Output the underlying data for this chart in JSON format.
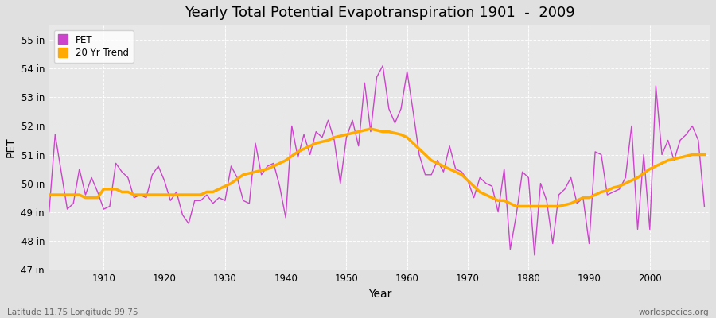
{
  "title": "Yearly Total Potential Evapotranspiration 1901  -  2009",
  "xlabel": "Year",
  "ylabel": "PET",
  "subtitle_left": "Latitude 11.75 Longitude 99.75",
  "subtitle_right": "worldspecies.org",
  "ylim": [
    47,
    55.5
  ],
  "yticks": [
    47,
    48,
    49,
    50,
    51,
    52,
    53,
    54,
    55
  ],
  "ytick_labels": [
    "47 in",
    "48 in",
    "49 in",
    "50 in",
    "51 in",
    "52 in",
    "53 in",
    "54 in",
    "55 in"
  ],
  "xticks": [
    1910,
    1920,
    1930,
    1940,
    1950,
    1960,
    1970,
    1980,
    1990,
    2000
  ],
  "xlim": [
    1901,
    2010
  ],
  "pet_color": "#cc44cc",
  "trend_color": "#ffaa00",
  "bg_color": "#e0e0e0",
  "plot_bg_color": "#e8e8e8",
  "legend_facecolor": "#ffffff",
  "years": [
    1901,
    1902,
    1903,
    1904,
    1905,
    1906,
    1907,
    1908,
    1909,
    1910,
    1911,
    1912,
    1913,
    1914,
    1915,
    1916,
    1917,
    1918,
    1919,
    1920,
    1921,
    1922,
    1923,
    1924,
    1925,
    1926,
    1927,
    1928,
    1929,
    1930,
    1931,
    1932,
    1933,
    1934,
    1935,
    1936,
    1937,
    1938,
    1939,
    1940,
    1941,
    1942,
    1943,
    1944,
    1945,
    1946,
    1947,
    1948,
    1949,
    1950,
    1951,
    1952,
    1953,
    1954,
    1955,
    1956,
    1957,
    1958,
    1959,
    1960,
    1961,
    1962,
    1963,
    1964,
    1965,
    1966,
    1967,
    1968,
    1969,
    1970,
    1971,
    1972,
    1973,
    1974,
    1975,
    1976,
    1977,
    1978,
    1979,
    1980,
    1981,
    1982,
    1983,
    1984,
    1985,
    1986,
    1987,
    1988,
    1989,
    1990,
    1991,
    1992,
    1993,
    1994,
    1995,
    1996,
    1997,
    1998,
    1999,
    2000,
    2001,
    2002,
    2003,
    2004,
    2005,
    2006,
    2007,
    2008,
    2009
  ],
  "pet_values": [
    49.0,
    51.7,
    50.4,
    49.1,
    49.3,
    50.5,
    49.6,
    50.2,
    49.7,
    49.1,
    49.2,
    50.7,
    50.4,
    50.2,
    49.5,
    49.6,
    49.5,
    50.3,
    50.6,
    50.1,
    49.4,
    49.7,
    48.9,
    48.6,
    49.4,
    49.4,
    49.6,
    49.3,
    49.5,
    49.4,
    50.6,
    50.2,
    49.4,
    49.3,
    51.4,
    50.3,
    50.6,
    50.7,
    49.9,
    48.8,
    52.0,
    50.9,
    51.7,
    51.0,
    51.8,
    51.6,
    52.2,
    51.5,
    50.0,
    51.6,
    52.2,
    51.3,
    53.5,
    51.8,
    53.7,
    54.1,
    52.6,
    52.1,
    52.6,
    53.9,
    52.5,
    51.0,
    50.3,
    50.3,
    50.8,
    50.4,
    51.3,
    50.5,
    50.4,
    50.1,
    49.5,
    50.2,
    50.0,
    49.9,
    49.0,
    50.5,
    47.7,
    48.9,
    50.4,
    50.2,
    47.5,
    50.0,
    49.4,
    47.9,
    49.6,
    49.8,
    50.2,
    49.3,
    49.5,
    47.9,
    51.1,
    51.0,
    49.6,
    49.7,
    49.8,
    50.2,
    52.0,
    48.4,
    51.0,
    48.4,
    53.4,
    51.0,
    51.5,
    50.8,
    51.5,
    51.7,
    52.0,
    51.5,
    49.2
  ],
  "trend_values": [
    49.6,
    49.6,
    49.6,
    49.6,
    49.6,
    49.6,
    49.5,
    49.5,
    49.5,
    49.8,
    49.8,
    49.8,
    49.7,
    49.7,
    49.6,
    49.6,
    49.6,
    49.6,
    49.6,
    49.6,
    49.6,
    49.6,
    49.6,
    49.6,
    49.6,
    49.6,
    49.7,
    49.7,
    49.8,
    49.9,
    50.0,
    50.15,
    50.3,
    50.35,
    50.4,
    50.45,
    50.5,
    50.6,
    50.7,
    50.8,
    50.95,
    51.1,
    51.2,
    51.3,
    51.4,
    51.45,
    51.5,
    51.6,
    51.65,
    51.7,
    51.75,
    51.8,
    51.85,
    51.9,
    51.85,
    51.8,
    51.8,
    51.75,
    51.7,
    51.6,
    51.4,
    51.2,
    51.0,
    50.8,
    50.7,
    50.6,
    50.5,
    50.4,
    50.3,
    50.1,
    49.9,
    49.7,
    49.6,
    49.5,
    49.4,
    49.4,
    49.3,
    49.2,
    49.2,
    49.2,
    49.2,
    49.2,
    49.2,
    49.2,
    49.2,
    49.25,
    49.3,
    49.4,
    49.5,
    49.5,
    49.6,
    49.7,
    49.75,
    49.85,
    49.9,
    50.0,
    50.1,
    50.2,
    50.35,
    50.5,
    50.6,
    50.7,
    50.8,
    50.85,
    50.9,
    50.95,
    51.0,
    51.0,
    51.0
  ]
}
